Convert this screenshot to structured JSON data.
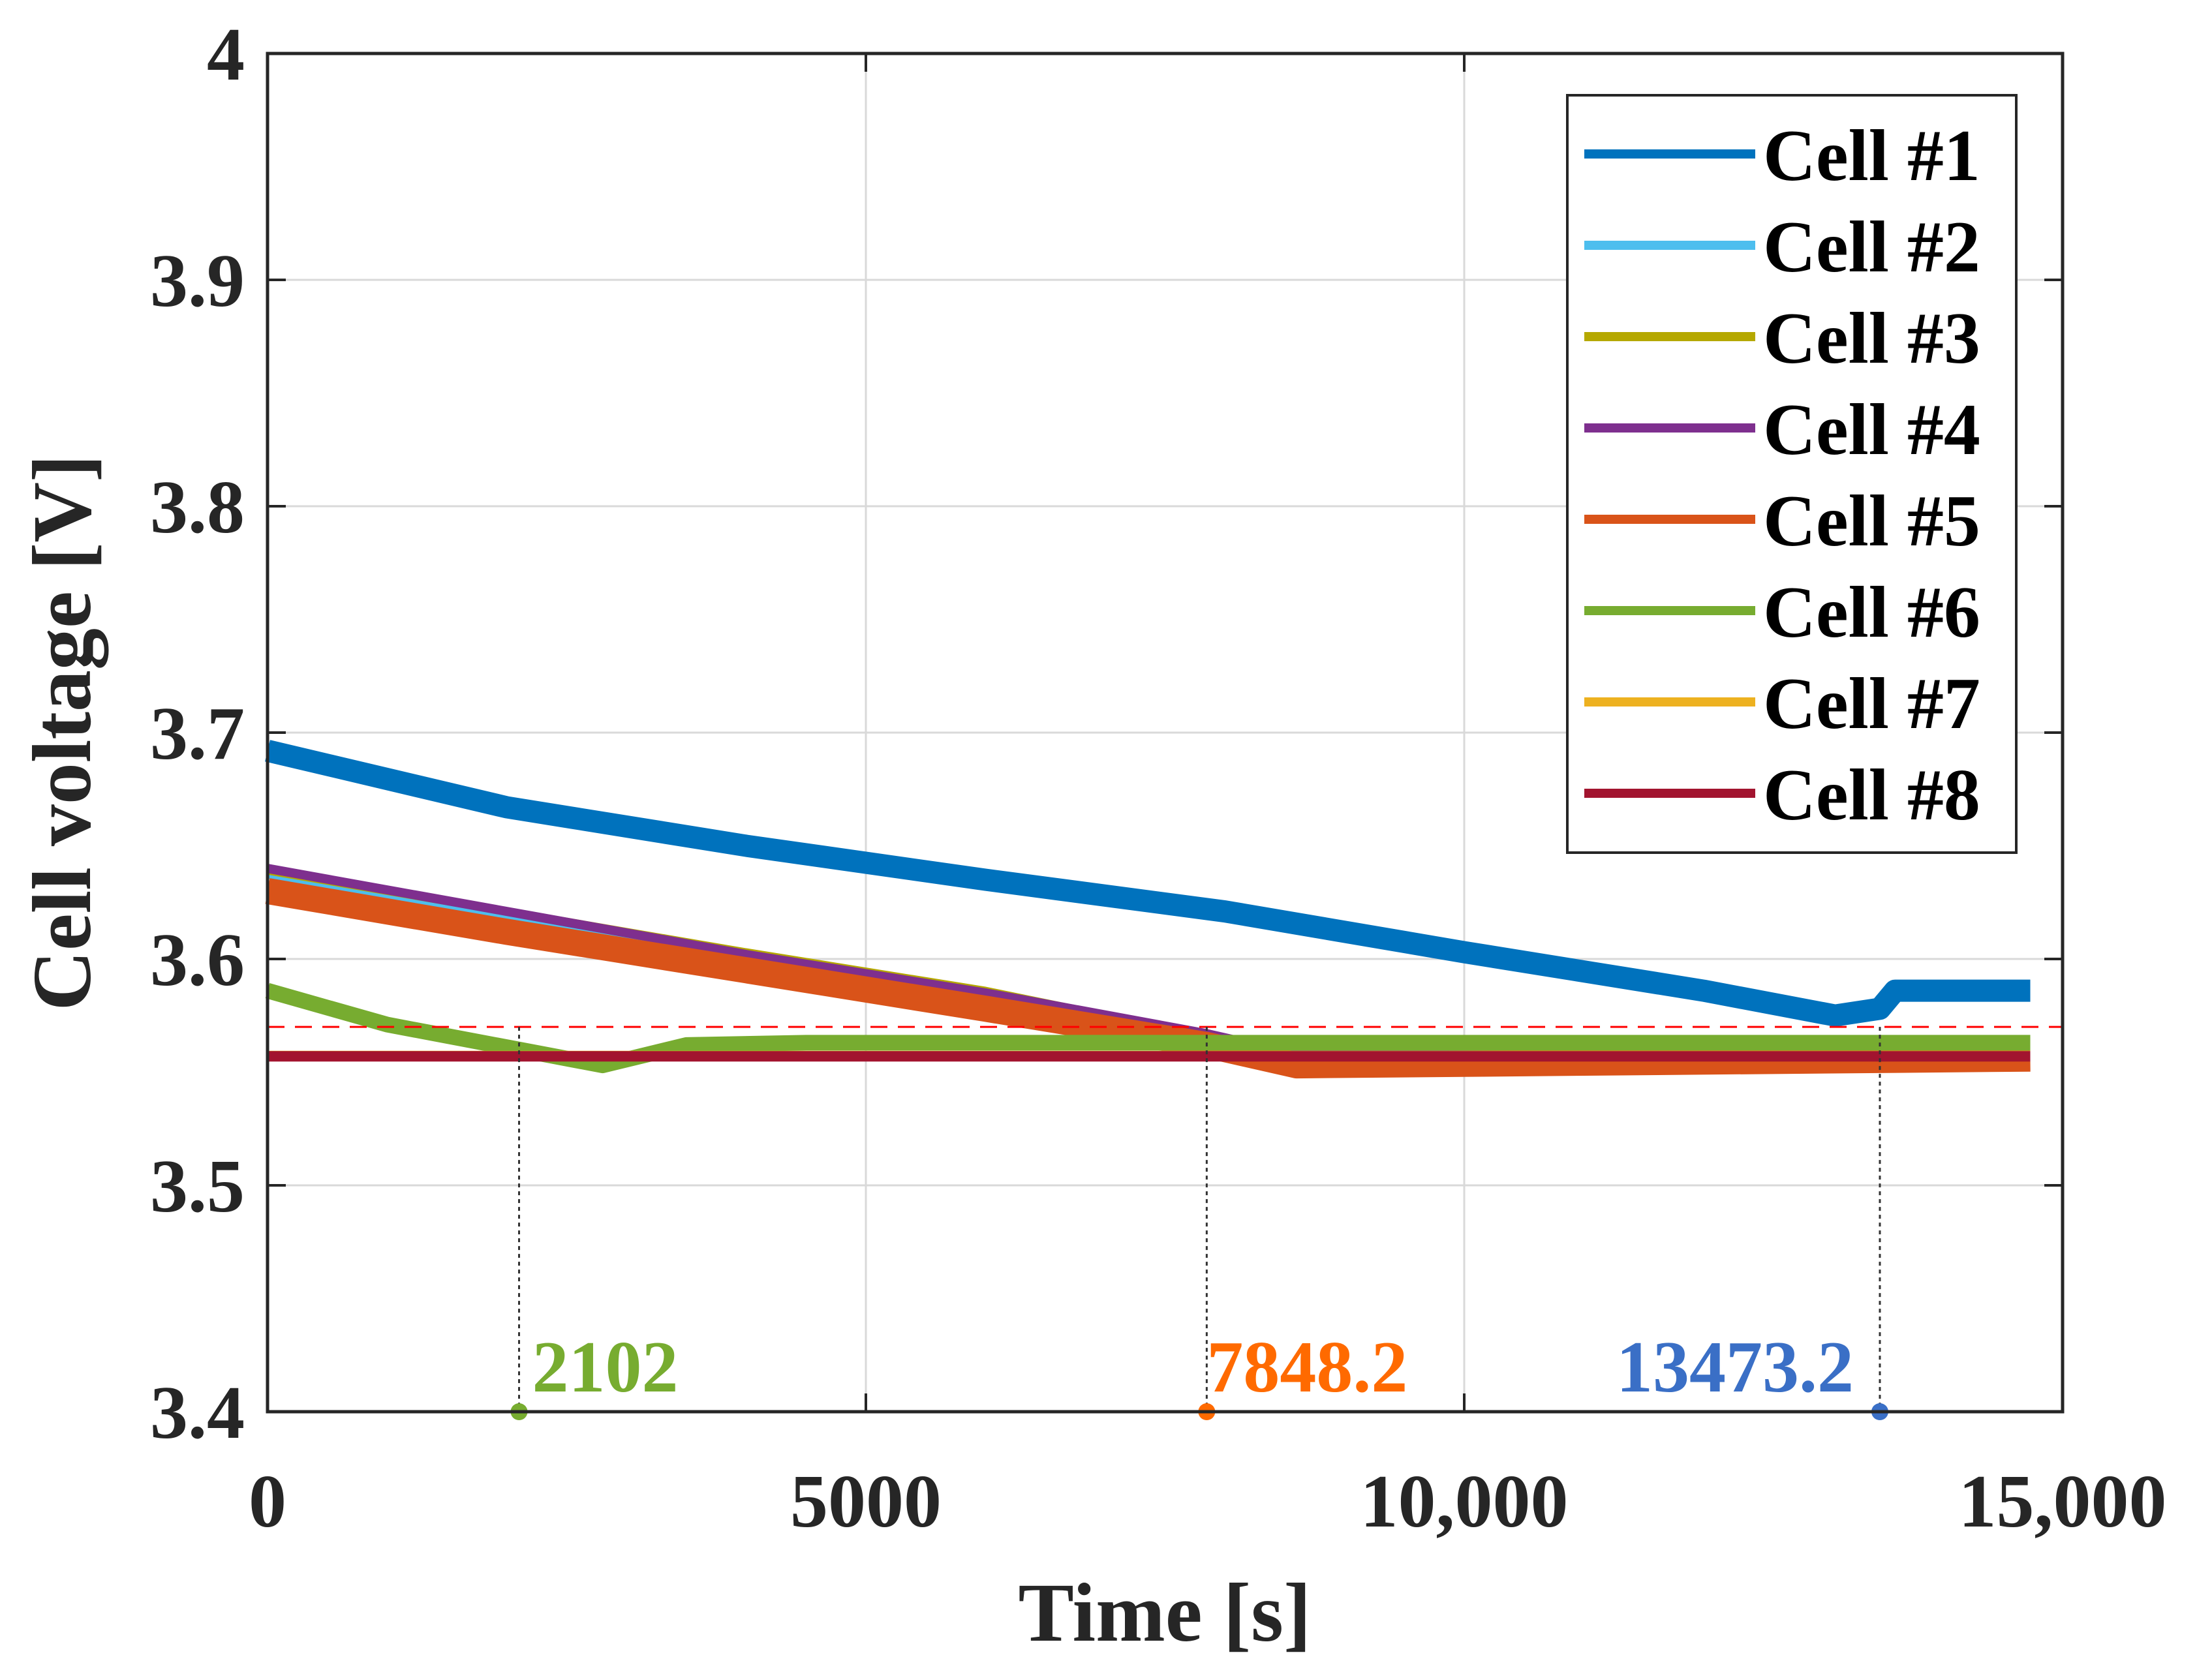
{
  "chart_data": {
    "type": "line",
    "title": "",
    "xlabel": "Time [s]",
    "ylabel": "Cell voltage [V]",
    "xlim": [
      0,
      15000
    ],
    "ylim": [
      3.4,
      4.0
    ],
    "x_ticks": [
      0,
      5000,
      10000,
      15000
    ],
    "x_tick_labels": [
      "0",
      "5000",
      "10,000",
      "15,000"
    ],
    "y_ticks": [
      3.4,
      3.5,
      3.6,
      3.7,
      3.8,
      3.9,
      4.0
    ],
    "y_tick_labels": [
      "3.4",
      "3.5",
      "3.6",
      "3.7",
      "3.8",
      "3.9",
      "4"
    ],
    "grid": true,
    "legend_position": "top-right",
    "threshold_line": {
      "y": 3.57,
      "color": "#ff0000",
      "style": "dashed"
    },
    "series": [
      {
        "name": "Cell #1",
        "color": "#0072BD",
        "x": [
          0,
          2000,
          4000,
          6000,
          8000,
          10000,
          12000,
          13100,
          13473.2,
          13600,
          15000
        ],
        "y": [
          3.692,
          3.667,
          3.65,
          3.635,
          3.621,
          3.603,
          3.586,
          3.575,
          3.578,
          3.586,
          3.586
        ]
      },
      {
        "name": "Cell #2",
        "color": "#4DBEEE",
        "x": [
          0,
          2000,
          4000,
          6000,
          7848.2,
          8600,
          15000
        ],
        "y": [
          3.637,
          3.619,
          3.602,
          3.585,
          3.566,
          3.558,
          3.558
        ]
      },
      {
        "name": "Cell #3",
        "color": "#B5A800",
        "x": [
          0,
          2000,
          4000,
          6000,
          7848.2,
          8600,
          15000
        ],
        "y": [
          3.639,
          3.621,
          3.603,
          3.586,
          3.566,
          3.558,
          3.558
        ]
      },
      {
        "name": "Cell #4",
        "color": "#7E2F8E",
        "x": [
          0,
          2000,
          4000,
          6000,
          7848.2,
          8600,
          15000
        ],
        "y": [
          3.64,
          3.621,
          3.602,
          3.585,
          3.567,
          3.558,
          3.558
        ]
      },
      {
        "name": "Cell #5",
        "color": "#D95319",
        "x": [
          0,
          2000,
          4000,
          6000,
          7848.2,
          8600,
          15000
        ],
        "y": [
          3.63,
          3.612,
          3.595,
          3.578,
          3.562,
          3.553,
          3.556
        ]
      },
      {
        "name": "Cell #6",
        "color": "#77AC30",
        "x": [
          0,
          1000,
          2102,
          2800,
          3500,
          4500,
          15000
        ],
        "y": [
          3.586,
          3.571,
          3.56,
          3.553,
          3.562,
          3.563,
          3.563
        ]
      },
      {
        "name": "Cell #7",
        "color": "#EDB120",
        "x": [
          0,
          15000
        ],
        "y": [
          3.558,
          3.558
        ]
      },
      {
        "name": "Cell #8",
        "color": "#A2142F",
        "x": [
          0,
          15000
        ],
        "y": [
          3.557,
          3.557
        ]
      }
    ],
    "annotations": [
      {
        "x": 2102,
        "label": "2102",
        "color": "#77AC30"
      },
      {
        "x": 7848.2,
        "label": "7848.2",
        "color": "#FF6A00"
      },
      {
        "x": 13473.2,
        "label": "13473.2",
        "color": "#3A6FC6"
      }
    ]
  }
}
